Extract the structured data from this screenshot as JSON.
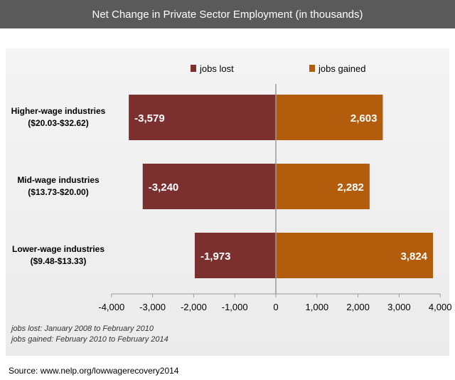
{
  "title": "Net Change in Private Sector Employment (in thousands)",
  "source": "Source: www.nelp.org/lowwagerecovery2014",
  "footnote": {
    "line1": "jobs lost: January 2008 to February 2010",
    "line2": "jobs gained: February 2010 to February 2014"
  },
  "colors": {
    "lost": "#7b2f2f",
    "gained": "#b35c0c",
    "title_bg": "#5a5a5a"
  },
  "chart_data": {
    "type": "bar",
    "orientation": "horizontal",
    "categories": [
      [
        "Higher-wage industries",
        "($20.03-$32.62)"
      ],
      [
        "Mid-wage industries",
        "($13.73-$20.00)"
      ],
      [
        "Lower-wage industries",
        "($9.48-$13.33)"
      ]
    ],
    "series": [
      {
        "name": "jobs lost",
        "values": [
          -3579,
          -3240,
          -1973
        ],
        "labels": [
          "-3,579",
          "-3,240",
          "-1,973"
        ]
      },
      {
        "name": "jobs gained",
        "values": [
          2603,
          2282,
          3824
        ],
        "labels": [
          "2,603",
          "2,282",
          "3,824"
        ]
      }
    ],
    "xlim": [
      -4000,
      4000
    ],
    "xticks": [
      -4000,
      -3000,
      -2000,
      -1000,
      0,
      1000,
      2000,
      3000,
      4000
    ],
    "xtick_labels": [
      "-4,000",
      "-3,000",
      "-2,000",
      "-1,000",
      "0",
      "1,000",
      "2,000",
      "3,000",
      "4,000"
    ],
    "legend_position": "top",
    "grid": false
  }
}
